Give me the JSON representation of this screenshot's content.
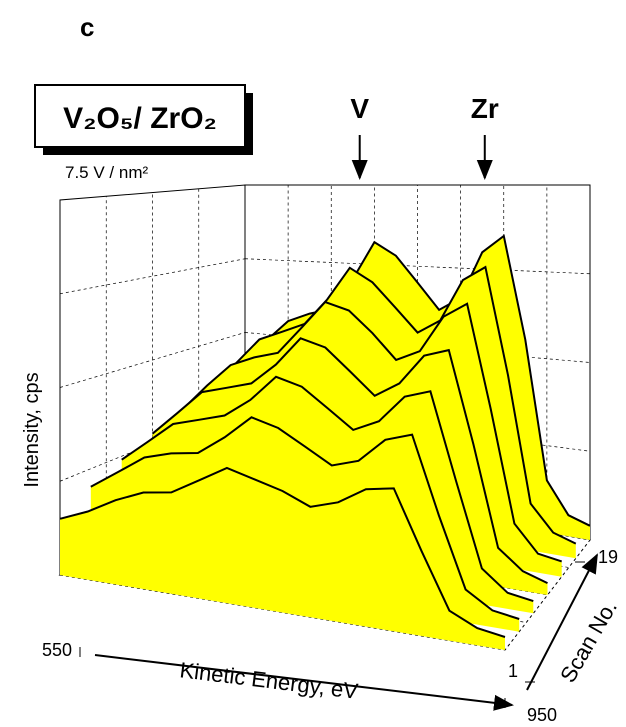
{
  "chart_data": {
    "type": "waterfall3d",
    "panel_label": "c",
    "title": "V₂O₅/ ZrO₂",
    "subtitle": "7.5  V / nm²",
    "x_label": "Kinetic Energy, eV",
    "z_label": "Intensity, cps",
    "scan_label": "Scan No.",
    "xlim": [
      550,
      950
    ],
    "xticks": [
      550,
      950
    ],
    "scanlim": [
      1,
      19
    ],
    "scanticks": [
      1,
      19
    ],
    "zlim": [
      0,
      100
    ],
    "color": "#ffff00",
    "line_color": "#000000",
    "annotations": [
      {
        "text": "V",
        "x": 683
      },
      {
        "text": "Zr",
        "x": 828
      }
    ],
    "x": [
      550,
      575,
      600,
      625,
      650,
      675,
      700,
      725,
      750,
      775,
      800,
      825,
      850,
      875,
      900,
      925,
      950
    ],
    "series": [
      {
        "scan": 19,
        "values": [
          40,
          48,
          55,
          58,
          60,
          70,
          82,
          78,
          70,
          62,
          66,
          80,
          85,
          55,
          15,
          6,
          4
        ]
      },
      {
        "scan": 16,
        "values": [
          36,
          44,
          52,
          55,
          58,
          66,
          76,
          72,
          65,
          58,
          62,
          74,
          78,
          48,
          13,
          6,
          4
        ]
      },
      {
        "scan": 13,
        "values": [
          32,
          40,
          47,
          50,
          52,
          60,
          68,
          66,
          60,
          53,
          56,
          66,
          70,
          42,
          12,
          5,
          4
        ]
      },
      {
        "scan": 10,
        "values": [
          28,
          35,
          42,
          44,
          46,
          52,
          60,
          58,
          52,
          46,
          50,
          58,
          60,
          36,
          10,
          5,
          3
        ]
      },
      {
        "scan": 7,
        "values": [
          24,
          30,
          36,
          38,
          40,
          45,
          52,
          50,
          45,
          40,
          43,
          50,
          52,
          30,
          9,
          4,
          3
        ]
      },
      {
        "scan": 4,
        "values": [
          20,
          25,
          30,
          32,
          33,
          38,
          44,
          42,
          38,
          34,
          36,
          42,
          44,
          25,
          8,
          4,
          3
        ]
      },
      {
        "scan": 1,
        "values": [
          15,
          18,
          22,
          25,
          26,
          30,
          34,
          32,
          30,
          27,
          29,
          33,
          34,
          20,
          7,
          4,
          3
        ]
      }
    ]
  }
}
